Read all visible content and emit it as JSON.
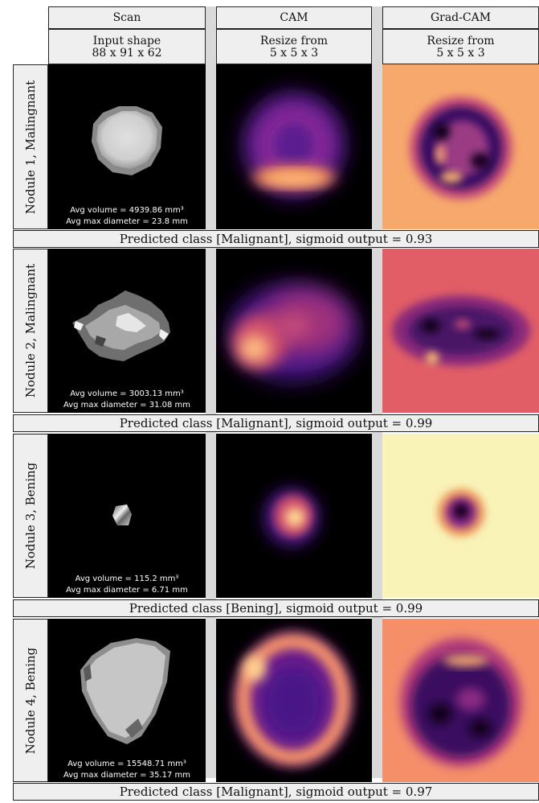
{
  "columns": [
    {
      "title": "Scan",
      "line1": "Input shape",
      "line2": "88 x 91 x 62"
    },
    {
      "title": "CAM",
      "line1": "Resize from",
      "line2": "5 x 5 x 3"
    },
    {
      "title": "Grad-CAM",
      "line1": "Resize from",
      "line2": "5 x 5 x 3"
    }
  ],
  "rows": [
    {
      "label": "Nodule 1, Malingnant",
      "volume": "Avg volume = 4939.86 mm³",
      "diameter": "Avg max diameter = 23.8 mm",
      "prediction": "Predicted class [Malignant], sigmoid output = 0.93",
      "gradcam_bg": "#f7a86c"
    },
    {
      "label": "Nodule 2, Malingnant",
      "volume": "Avg volume = 3003.13 mm³",
      "diameter": "Avg max diameter = 31.08 mm",
      "prediction": "Predicted class [Malignant], sigmoid output = 0.99",
      "gradcam_bg": "#e25e66"
    },
    {
      "label": "Nodule 3, Bening",
      "volume": "Avg volume = 115.2 mm³",
      "diameter": "Avg max diameter = 6.71 mm",
      "prediction": "Predicted class [Bening], sigmoid output = 0.99",
      "gradcam_bg": "#f9f3b8"
    },
    {
      "label": "Nodule 4, Bening",
      "volume": "Avg volume = 15548.71 mm³",
      "diameter": "Avg max diameter = 35.17 mm",
      "prediction": "Predicted class [Malignant], sigmoid output = 0.97",
      "gradcam_bg": "#f58f6a"
    }
  ]
}
